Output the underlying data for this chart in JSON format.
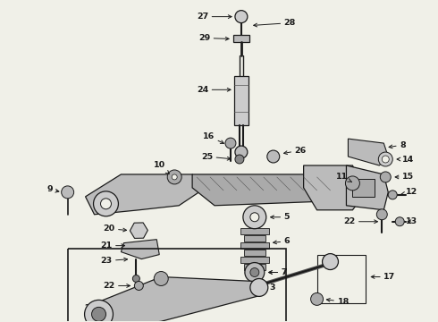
{
  "bg": "#f0f0e8",
  "fg": "#1a1a1a",
  "fig_w": 4.9,
  "fig_h": 3.6,
  "dpi": 100,
  "label_fs": 6.8,
  "arrow_lw": 0.7,
  "part_lw": 0.9
}
